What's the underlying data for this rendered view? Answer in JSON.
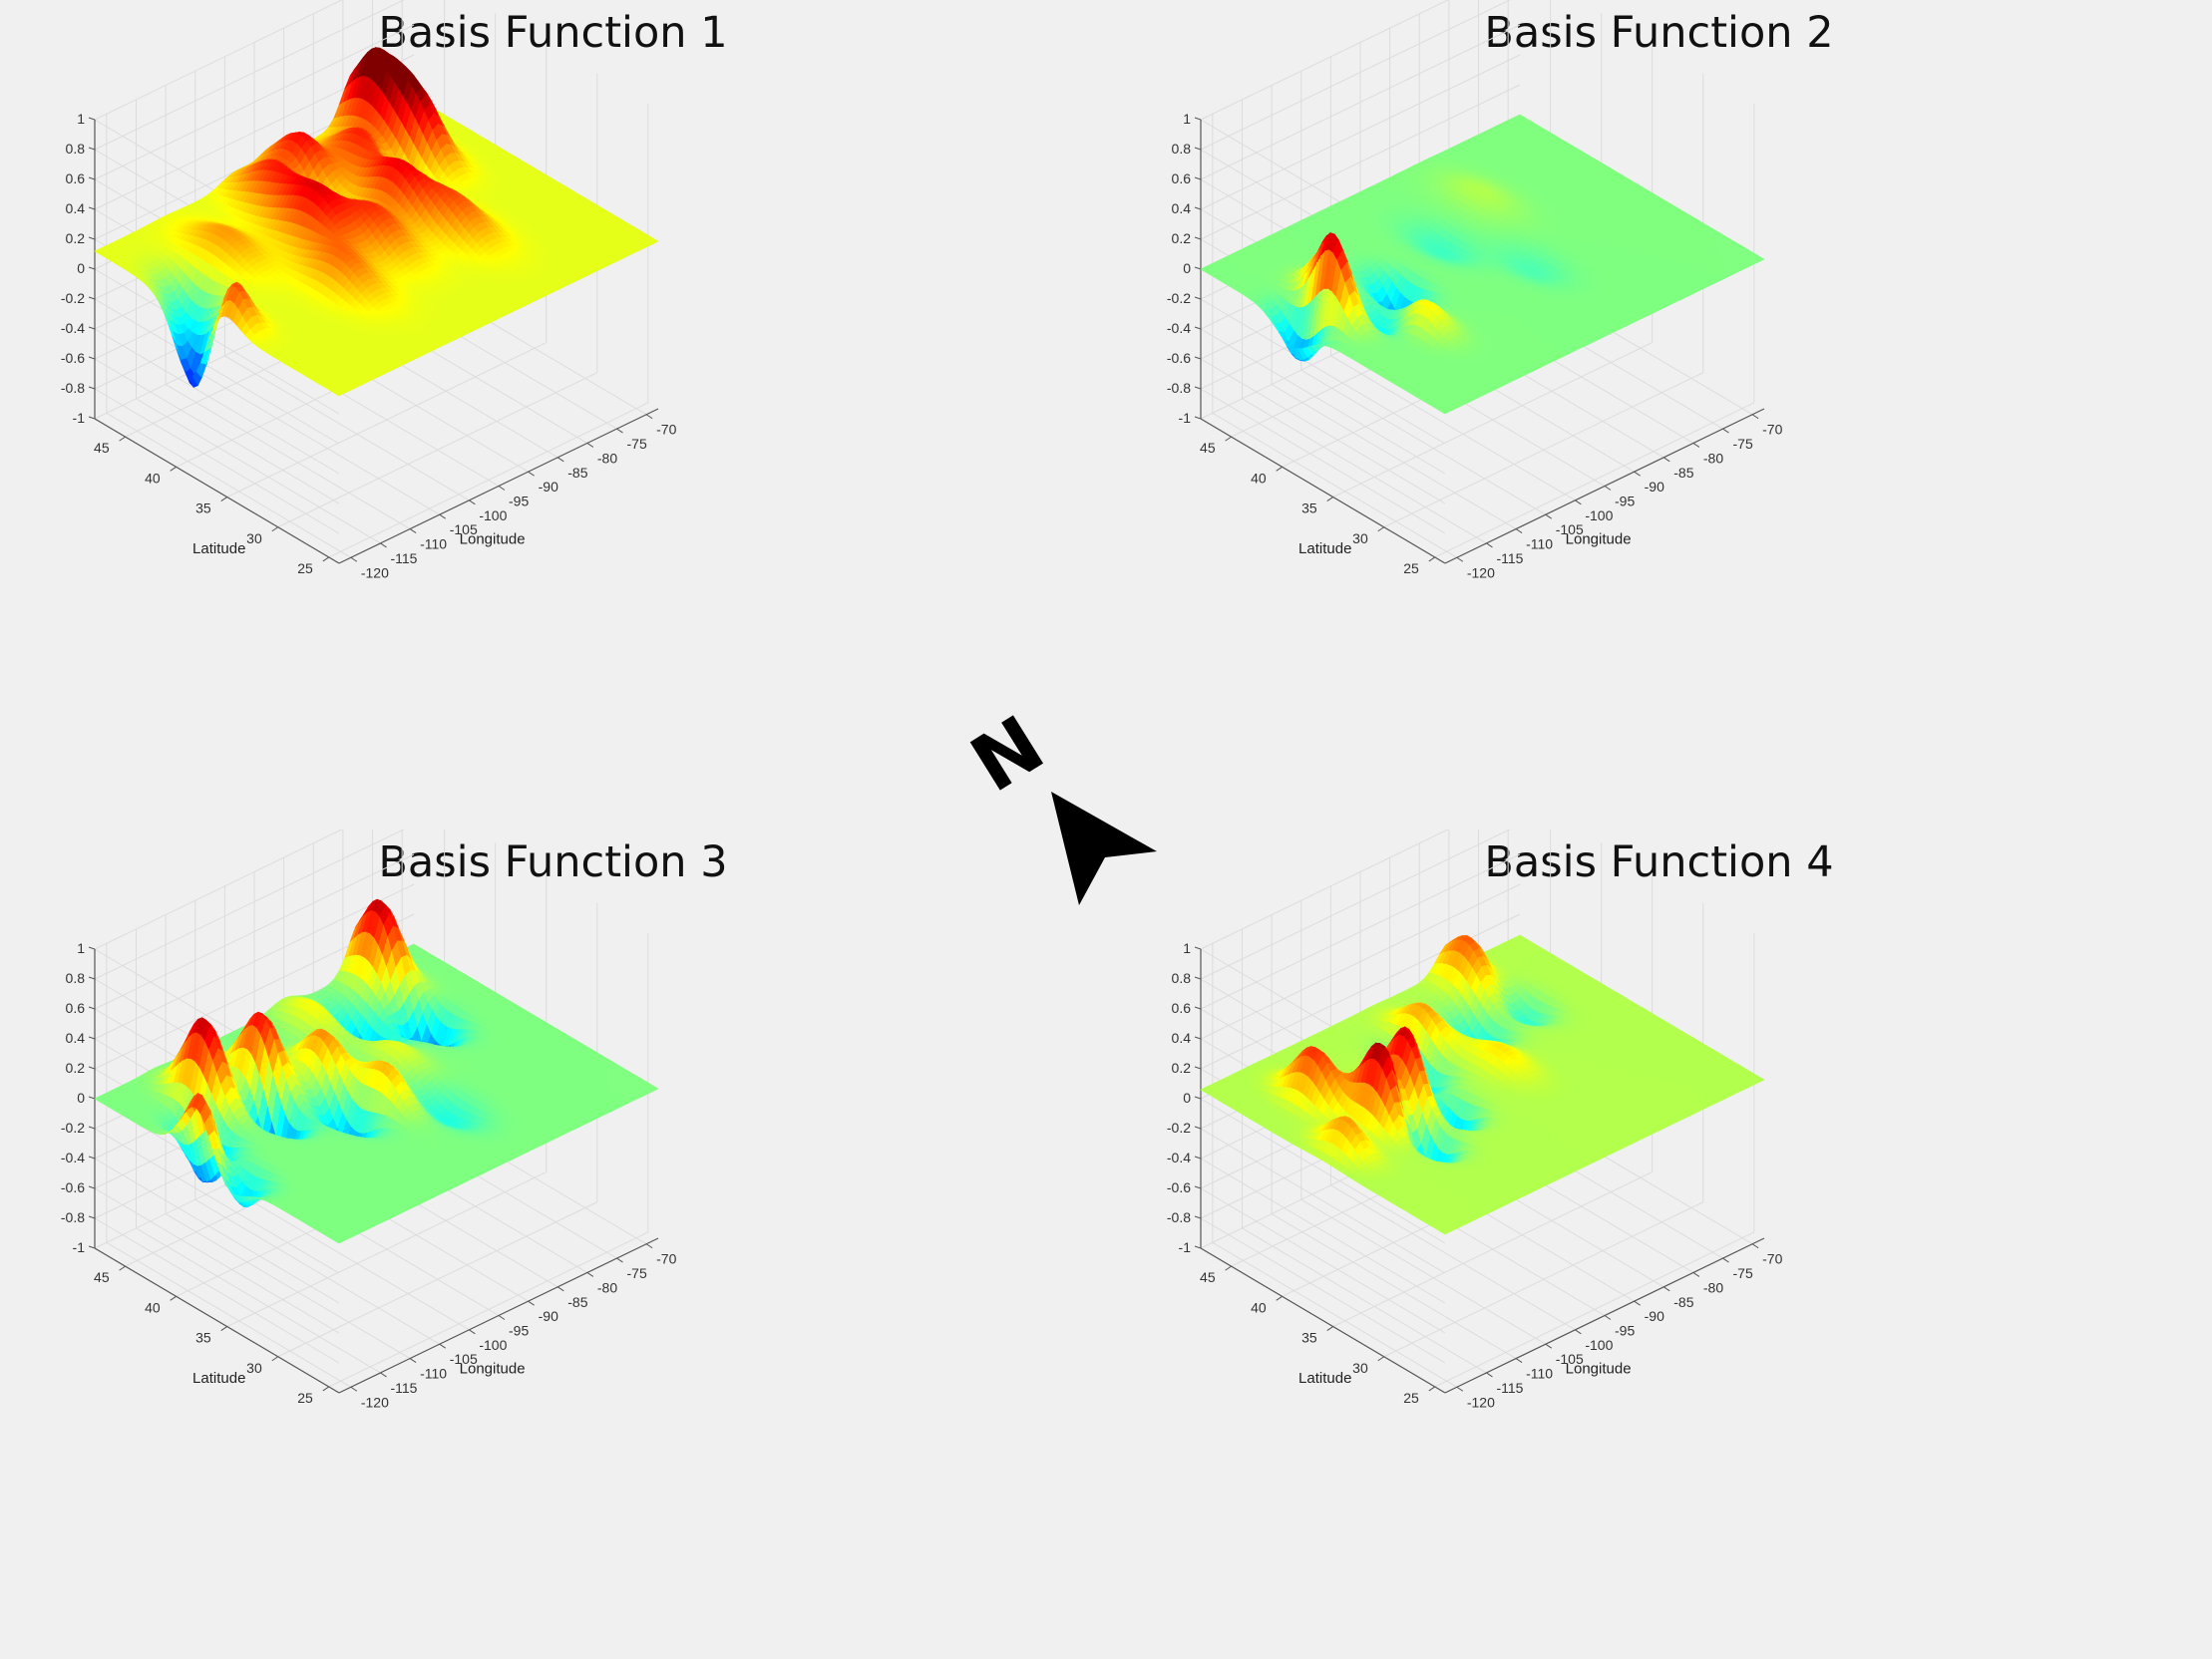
{
  "figure": {
    "compass": {
      "letter": "N",
      "icon": "north-arrow-icon"
    }
  },
  "chart_data": [
    {
      "type": "surface",
      "title": "Basis Function 1",
      "xlabel": "Longitude",
      "ylabel": "Latitude",
      "zlabel": "",
      "x_ticks": [
        "-120",
        "-115",
        "-110",
        "-105",
        "-100",
        "-95",
        "-90",
        "-85",
        "-80",
        "-75",
        "-70"
      ],
      "y_ticks": [
        "25",
        "30",
        "35",
        "40",
        "45"
      ],
      "z_ticks": [
        "1",
        "0.8",
        "0.6",
        "0.4",
        "0.2",
        "0",
        "-0.2",
        "-0.4",
        "-0.6",
        "-0.8",
        "-1"
      ],
      "xlim": [
        -122,
        -68
      ],
      "ylim": [
        24,
        48
      ],
      "zlim": [
        -1,
        1
      ],
      "grid": true,
      "colormap": "jet",
      "color_limits": [
        -0.6,
        0.6
      ],
      "base_value": 0.12,
      "bumps": [
        {
          "x": -78,
          "y": 46,
          "amp": 0.55,
          "s": 2.2
        },
        {
          "x": -77,
          "y": 42,
          "amp": 0.38,
          "s": 2.0
        },
        {
          "x": -85,
          "y": 43,
          "amp": 0.3,
          "s": 2.5
        },
        {
          "x": -92,
          "y": 45,
          "amp": 0.32,
          "s": 2.2
        },
        {
          "x": -98,
          "y": 44,
          "amp": 0.28,
          "s": 2.5
        },
        {
          "x": -100,
          "y": 39,
          "amp": 0.32,
          "s": 2.5
        },
        {
          "x": -95,
          "y": 36,
          "amp": 0.25,
          "s": 2.5
        },
        {
          "x": -88,
          "y": 38,
          "amp": 0.3,
          "s": 2.2
        },
        {
          "x": -85,
          "y": 34,
          "amp": 0.22,
          "s": 2.5
        },
        {
          "x": -104,
          "y": 34,
          "amp": 0.2,
          "s": 2.5
        },
        {
          "x": -110,
          "y": 42,
          "amp": 0.15,
          "s": 2.5
        },
        {
          "x": -120,
          "y": 36,
          "amp": 0.35,
          "s": 1.6
        },
        {
          "x": -121,
          "y": 38.5,
          "amp": -0.6,
          "s": 1.6
        },
        {
          "x": -118,
          "y": 41,
          "amp": -0.25,
          "s": 1.8
        },
        {
          "x": -83,
          "y": 40,
          "amp": -0.22,
          "s": 1.6
        },
        {
          "x": -95,
          "y": 42,
          "amp": -0.12,
          "s": 1.8
        }
      ]
    },
    {
      "type": "surface",
      "title": "Basis Function 2",
      "xlabel": "Longitude",
      "ylabel": "Latitude",
      "zlabel": "",
      "x_ticks": [
        "-120",
        "-115",
        "-110",
        "-105",
        "-100",
        "-95",
        "-90",
        "-85",
        "-80",
        "-75",
        "-70"
      ],
      "y_ticks": [
        "25",
        "30",
        "35",
        "40",
        "45"
      ],
      "z_ticks": [
        "1",
        "0.8",
        "0.6",
        "0.4",
        "0.2",
        "0",
        "-0.2",
        "-0.4",
        "-0.6",
        "-0.8",
        "-1"
      ],
      "xlim": [
        -122,
        -68
      ],
      "ylim": [
        24,
        48
      ],
      "zlim": [
        -1,
        1
      ],
      "grid": true,
      "colormap": "jet",
      "color_limits": [
        -0.6,
        0.6
      ],
      "base_value": 0.0,
      "bumps": [
        {
          "x": -117,
          "y": 38,
          "amp": 0.55,
          "s": 1.6
        },
        {
          "x": -120,
          "y": 39,
          "amp": -0.35,
          "s": 1.6
        },
        {
          "x": -114,
          "y": 40,
          "amp": 0.28,
          "s": 1.6
        },
        {
          "x": -112,
          "y": 36,
          "amp": -0.18,
          "s": 1.8
        },
        {
          "x": -106,
          "y": 38,
          "amp": -0.32,
          "s": 1.6
        },
        {
          "x": -110,
          "y": 33,
          "amp": 0.18,
          "s": 1.8
        },
        {
          "x": -95,
          "y": 40,
          "amp": -0.08,
          "s": 2.2
        },
        {
          "x": -85,
          "y": 42,
          "amp": 0.06,
          "s": 2.5
        },
        {
          "x": -90,
          "y": 34,
          "amp": -0.06,
          "s": 2.2
        }
      ]
    },
    {
      "type": "surface",
      "title": "Basis Function 3",
      "xlabel": "Longitude",
      "ylabel": "Latitude",
      "zlabel": "",
      "x_ticks": [
        "-120",
        "-115",
        "-110",
        "-105",
        "-100",
        "-95",
        "-90",
        "-85",
        "-80",
        "-75",
        "-70"
      ],
      "y_ticks": [
        "25",
        "30",
        "35",
        "40",
        "45"
      ],
      "z_ticks": [
        "1",
        "0.8",
        "0.6",
        "0.4",
        "0.2",
        "0",
        "-0.2",
        "-0.4",
        "-0.6",
        "-0.8",
        "-1"
      ],
      "xlim": [
        -122,
        -68
      ],
      "ylim": [
        24,
        48
      ],
      "zlim": [
        -1,
        1
      ],
      "grid": true,
      "colormap": "jet",
      "color_limits": [
        -0.6,
        0.6
      ],
      "base_value": 0.0,
      "bumps": [
        {
          "x": -77,
          "y": 46,
          "amp": 0.55,
          "s": 2.0
        },
        {
          "x": -78,
          "y": 41,
          "amp": -0.42,
          "s": 1.8
        },
        {
          "x": -85,
          "y": 43,
          "amp": -0.35,
          "s": 1.8
        },
        {
          "x": -90,
          "y": 45,
          "amp": 0.15,
          "s": 2.2
        },
        {
          "x": -112,
          "y": 43,
          "amp": 0.55,
          "s": 1.8
        },
        {
          "x": -104,
          "y": 42,
          "amp": 0.48,
          "s": 1.8
        },
        {
          "x": -107,
          "y": 39,
          "amp": -0.48,
          "s": 1.6
        },
        {
          "x": -97,
          "y": 40,
          "amp": 0.3,
          "s": 1.8
        },
        {
          "x": -100,
          "y": 36,
          "amp": -0.3,
          "s": 1.8
        },
        {
          "x": -95,
          "y": 35,
          "amp": 0.25,
          "s": 1.8
        },
        {
          "x": -117,
          "y": 40,
          "amp": -0.35,
          "s": 1.6
        },
        {
          "x": -121,
          "y": 38,
          "amp": 0.45,
          "s": 1.5
        },
        {
          "x": -120,
          "y": 35,
          "amp": -0.25,
          "s": 1.6
        },
        {
          "x": -88,
          "y": 38,
          "amp": 0.12,
          "s": 2.0
        },
        {
          "x": -90,
          "y": 32,
          "amp": -0.12,
          "s": 2.2
        }
      ]
    },
    {
      "type": "surface",
      "title": "Basis Function 4",
      "xlabel": "Longitude",
      "ylabel": "Latitude",
      "zlabel": "",
      "x_ticks": [
        "-120",
        "-115",
        "-110",
        "-105",
        "-100",
        "-95",
        "-90",
        "-85",
        "-80",
        "-75",
        "-70"
      ],
      "y_ticks": [
        "25",
        "30",
        "35",
        "40",
        "45"
      ],
      "z_ticks": [
        "1",
        "0.8",
        "0.6",
        "0.4",
        "0.2",
        "0",
        "-0.2",
        "-0.4",
        "-0.6",
        "-0.8",
        "-1"
      ],
      "xlim": [
        -122,
        -68
      ],
      "ylim": [
        24,
        48
      ],
      "zlim": [
        -1,
        1
      ],
      "grid": true,
      "colormap": "jet",
      "color_limits": [
        -0.6,
        0.6
      ],
      "base_value": 0.06,
      "bumps": [
        {
          "x": -110,
          "y": 37,
          "amp": 0.55,
          "s": 1.8
        },
        {
          "x": -108,
          "y": 34,
          "amp": -0.45,
          "s": 1.6
        },
        {
          "x": -104,
          "y": 38,
          "amp": 0.5,
          "s": 1.8
        },
        {
          "x": -101,
          "y": 36,
          "amp": -0.48,
          "s": 1.6
        },
        {
          "x": -113,
          "y": 42,
          "amp": 0.35,
          "s": 1.8
        },
        {
          "x": -97,
          "y": 41,
          "amp": -0.25,
          "s": 1.8
        },
        {
          "x": -93,
          "y": 43,
          "amp": 0.22,
          "s": 1.8
        },
        {
          "x": -85,
          "y": 42,
          "amp": -0.22,
          "s": 1.8
        },
        {
          "x": -80,
          "y": 46,
          "amp": 0.3,
          "s": 2.0
        },
        {
          "x": -78,
          "y": 42,
          "amp": -0.18,
          "s": 1.8
        },
        {
          "x": -118,
          "y": 36,
          "amp": 0.22,
          "s": 1.6
        },
        {
          "x": -90,
          "y": 37,
          "amp": 0.12,
          "s": 2.0
        }
      ]
    }
  ]
}
